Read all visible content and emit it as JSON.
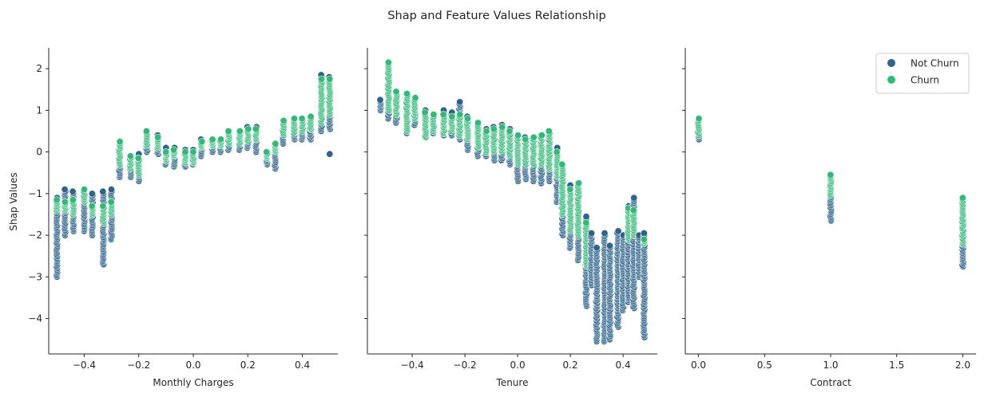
{
  "figure": {
    "title": "Shap and Feature Values Relationship",
    "ylabel": "Shap Values"
  },
  "legend": {
    "location": "top-right of third panel",
    "entries": [
      {
        "label": "Not Churn",
        "color": "#2f6389"
      },
      {
        "label": "Churn",
        "color": "#36b77a"
      }
    ]
  },
  "chart_data": [
    {
      "type": "scatter",
      "xlabel": "Monthly Charges",
      "ylabel": "Shap Values",
      "xlim": [
        -0.53,
        0.53
      ],
      "ylim": [
        -4.85,
        2.5
      ],
      "xticks": [
        -0.4,
        -0.2,
        0.0,
        0.2,
        0.4
      ],
      "xtick_labels": [
        "−0.4",
        "−0.2",
        "0.0",
        "0.2",
        "0.4"
      ],
      "yticks": [
        -4,
        -3,
        -2,
        -1,
        0,
        1,
        2
      ],
      "ytick_labels": [
        "−4",
        "−3",
        "−2",
        "−1",
        "0",
        "1",
        "2"
      ],
      "grid": false,
      "column_summary": [
        {
          "x": -0.5,
          "not_churn": [
            -3.0,
            -1.1
          ],
          "churn": [
            -1.4,
            -1.15
          ]
        },
        {
          "x": -0.47,
          "not_churn": [
            -2.0,
            -0.9
          ],
          "churn": [
            -1.4,
            -1.2
          ]
        },
        {
          "x": -0.44,
          "not_churn": [
            -1.9,
            -0.95
          ],
          "churn": [
            -1.5,
            -1.15
          ]
        },
        {
          "x": -0.4,
          "not_churn": [
            -1.9,
            -0.95
          ],
          "churn": [
            -1.2,
            -0.9
          ]
        },
        {
          "x": -0.37,
          "not_churn": [
            -2.0,
            -1.0
          ],
          "churn": [
            -1.5,
            -1.3
          ]
        },
        {
          "x": -0.33,
          "not_churn": [
            -2.7,
            -0.95
          ],
          "churn": [
            -1.7,
            -1.3
          ]
        },
        {
          "x": -0.3,
          "not_churn": [
            -2.1,
            -0.9
          ],
          "churn": [
            -1.5,
            -1.2
          ]
        },
        {
          "x": -0.27,
          "not_churn": [
            -0.6,
            0.2
          ],
          "churn": [
            -0.3,
            0.25
          ]
        },
        {
          "x": -0.23,
          "not_churn": [
            -0.6,
            -0.15
          ],
          "churn": [
            -0.4,
            -0.1
          ]
        },
        {
          "x": -0.2,
          "not_churn": [
            -0.7,
            -0.05
          ],
          "churn": [
            -0.55,
            -0.15
          ]
        },
        {
          "x": -0.17,
          "not_churn": [
            0.0,
            0.5
          ],
          "churn": [
            0.15,
            0.5
          ]
        },
        {
          "x": -0.13,
          "not_churn": [
            -0.05,
            0.4
          ],
          "churn": [
            0.1,
            0.35
          ]
        },
        {
          "x": -0.1,
          "not_churn": [
            -0.3,
            0.1
          ],
          "churn": [
            -0.2,
            0.0
          ]
        },
        {
          "x": -0.07,
          "not_churn": [
            -0.35,
            0.1
          ],
          "churn": [
            -0.1,
            0.05
          ]
        },
        {
          "x": -0.03,
          "not_churn": [
            -0.35,
            0.05
          ],
          "churn": [
            -0.25,
            0.0
          ]
        },
        {
          "x": 0.0,
          "not_churn": [
            -0.3,
            0.05
          ],
          "churn": [
            -0.25,
            0.0
          ]
        },
        {
          "x": 0.03,
          "not_churn": [
            -0.1,
            0.3
          ],
          "churn": [
            0.1,
            0.25
          ]
        },
        {
          "x": 0.07,
          "not_churn": [
            0.0,
            0.3
          ],
          "churn": [
            0.15,
            0.3
          ]
        },
        {
          "x": 0.1,
          "not_churn": [
            0.0,
            0.3
          ],
          "churn": [
            0.15,
            0.3
          ]
        },
        {
          "x": 0.13,
          "not_churn": [
            0.05,
            0.5
          ],
          "churn": [
            0.2,
            0.5
          ]
        },
        {
          "x": 0.17,
          "not_churn": [
            0.05,
            0.5
          ],
          "churn": [
            0.2,
            0.5
          ]
        },
        {
          "x": 0.2,
          "not_churn": [
            0.1,
            0.6
          ],
          "churn": [
            0.25,
            0.55
          ]
        },
        {
          "x": 0.23,
          "not_churn": [
            0.0,
            0.6
          ],
          "churn": [
            0.3,
            0.55
          ]
        },
        {
          "x": 0.27,
          "not_churn": [
            -0.3,
            0.0
          ],
          "churn": [
            -0.15,
            0.0
          ]
        },
        {
          "x": 0.3,
          "not_churn": [
            -0.4,
            0.2
          ],
          "churn": [
            0.0,
            0.2
          ]
        },
        {
          "x": 0.33,
          "not_churn": [
            0.2,
            0.75
          ],
          "churn": [
            0.4,
            0.75
          ]
        },
        {
          "x": 0.37,
          "not_churn": [
            0.3,
            0.8
          ],
          "churn": [
            0.45,
            0.8
          ]
        },
        {
          "x": 0.4,
          "not_churn": [
            0.3,
            0.8
          ],
          "churn": [
            0.5,
            0.8
          ]
        },
        {
          "x": 0.43,
          "not_churn": [
            0.3,
            0.85
          ],
          "churn": [
            0.55,
            0.85
          ]
        },
        {
          "x": 0.47,
          "not_churn": [
            0.5,
            1.85
          ],
          "churn": [
            0.7,
            1.75
          ]
        },
        {
          "x": 0.5,
          "not_churn": [
            0.55,
            1.8
          ],
          "churn": [
            0.9,
            1.75
          ]
        }
      ],
      "outliers": [
        {
          "x": 0.5,
          "y": -0.05,
          "series": "Not Churn"
        }
      ]
    },
    {
      "type": "scatter",
      "xlabel": "Tenure",
      "xlim": [
        -0.57,
        0.53
      ],
      "ylim": [
        -4.85,
        2.5
      ],
      "xticks": [
        -0.4,
        -0.2,
        0.0,
        0.2,
        0.4
      ],
      "xtick_labels": [
        "−0.4",
        "−0.2",
        "0.0",
        "0.2",
        "0.4"
      ],
      "grid": false,
      "column_summary": [
        {
          "x": -0.52,
          "not_churn": [
            1.0,
            1.25
          ],
          "churn": []
        },
        {
          "x": -0.49,
          "not_churn": [
            0.8,
            2.1
          ],
          "churn": [
            1.0,
            2.15
          ]
        },
        {
          "x": -0.46,
          "not_churn": [
            0.7,
            1.4
          ],
          "churn": [
            0.9,
            1.45
          ]
        },
        {
          "x": -0.42,
          "not_churn": [
            0.45,
            1.35
          ],
          "churn": [
            0.5,
            1.4
          ]
        },
        {
          "x": -0.39,
          "not_churn": [
            0.65,
            1.25
          ],
          "churn": [
            0.8,
            1.3
          ]
        },
        {
          "x": -0.35,
          "not_churn": [
            0.4,
            1.0
          ],
          "churn": [
            0.35,
            0.95
          ]
        },
        {
          "x": -0.32,
          "not_churn": [
            0.45,
            0.9
          ],
          "churn": [
            0.5,
            0.9
          ]
        },
        {
          "x": -0.28,
          "not_churn": [
            0.4,
            1.0
          ],
          "churn": [
            0.45,
            0.9
          ]
        },
        {
          "x": -0.25,
          "not_churn": [
            0.4,
            0.95
          ],
          "churn": [
            0.5,
            0.85
          ]
        },
        {
          "x": -0.22,
          "not_churn": [
            0.3,
            1.2
          ],
          "churn": [
            0.4,
            0.9
          ]
        },
        {
          "x": -0.19,
          "not_churn": [
            0.05,
            0.85
          ],
          "churn": [
            0.3,
            0.8
          ]
        },
        {
          "x": -0.15,
          "not_churn": [
            -0.1,
            0.7
          ],
          "churn": [
            0.1,
            0.7
          ]
        },
        {
          "x": -0.12,
          "not_churn": [
            -0.1,
            0.55
          ],
          "churn": [
            0.0,
            0.5
          ]
        },
        {
          "x": -0.09,
          "not_churn": [
            -0.2,
            0.6
          ],
          "churn": [
            0.0,
            0.55
          ]
        },
        {
          "x": -0.06,
          "not_churn": [
            -0.2,
            0.65
          ],
          "churn": [
            0.0,
            0.6
          ]
        },
        {
          "x": -0.03,
          "not_churn": [
            -0.3,
            0.55
          ],
          "churn": [
            -0.1,
            0.5
          ]
        },
        {
          "x": 0.0,
          "not_churn": [
            -0.7,
            0.35
          ],
          "churn": [
            -0.3,
            0.4
          ]
        },
        {
          "x": 0.03,
          "not_churn": [
            -0.65,
            0.35
          ],
          "churn": [
            -0.3,
            0.3
          ]
        },
        {
          "x": 0.06,
          "not_churn": [
            -0.7,
            0.35
          ],
          "churn": [
            -0.3,
            0.35
          ]
        },
        {
          "x": 0.09,
          "not_churn": [
            -0.75,
            0.4
          ],
          "churn": [
            -0.3,
            0.4
          ]
        },
        {
          "x": 0.12,
          "not_churn": [
            -0.7,
            0.5
          ],
          "churn": [
            -0.4,
            0.5
          ]
        },
        {
          "x": 0.15,
          "not_churn": [
            -1.2,
            0.1
          ],
          "churn": [
            -0.6,
            0.0
          ]
        },
        {
          "x": 0.17,
          "not_churn": [
            -2.0,
            -0.4
          ],
          "churn": [
            -1.5,
            -0.3
          ]
        },
        {
          "x": 0.2,
          "not_churn": [
            -2.3,
            -0.8
          ],
          "churn": [
            -1.9,
            -0.9
          ]
        },
        {
          "x": 0.23,
          "not_churn": [
            -2.6,
            -0.75
          ],
          "churn": [
            -2.0,
            -0.75
          ]
        },
        {
          "x": 0.26,
          "not_churn": [
            -3.7,
            -1.55
          ],
          "churn": [
            -2.75,
            -1.7
          ]
        },
        {
          "x": 0.28,
          "not_churn": [
            -3.2,
            -1.95
          ],
          "churn": []
        },
        {
          "x": 0.3,
          "not_churn": [
            -4.55,
            -2.3
          ],
          "churn": []
        },
        {
          "x": 0.33,
          "not_churn": [
            -4.55,
            -1.95
          ],
          "churn": []
        },
        {
          "x": 0.35,
          "not_churn": [
            -4.5,
            -2.25
          ],
          "churn": []
        },
        {
          "x": 0.38,
          "not_churn": [
            -4.2,
            -1.9
          ],
          "churn": []
        },
        {
          "x": 0.4,
          "not_churn": [
            -3.8,
            -2.0
          ],
          "churn": []
        },
        {
          "x": 0.42,
          "not_churn": [
            -3.6,
            -1.3
          ],
          "churn": [
            -2.1,
            -1.35
          ]
        },
        {
          "x": 0.44,
          "not_churn": [
            -3.75,
            -1.1
          ],
          "churn": [
            -2.0,
            -1.4
          ]
        },
        {
          "x": 0.46,
          "not_churn": [
            -3.0,
            -2.0
          ],
          "churn": []
        },
        {
          "x": 0.48,
          "not_churn": [
            -4.45,
            -1.95
          ],
          "churn": [
            -2.2,
            -2.1
          ]
        }
      ]
    },
    {
      "type": "scatter",
      "xlabel": "Contract",
      "xlim": [
        -0.1,
        2.1
      ],
      "ylim": [
        -4.85,
        2.5
      ],
      "xticks": [
        0.0,
        0.5,
        1.0,
        1.5,
        2.0
      ],
      "xtick_labels": [
        "0.0",
        "0.5",
        "1.0",
        "1.5",
        "2.0"
      ],
      "grid": false,
      "column_summary": [
        {
          "x": 0.0,
          "not_churn": [
            0.3,
            0.7
          ],
          "churn": [
            0.4,
            0.8
          ]
        },
        {
          "x": 1.0,
          "not_churn": [
            -1.65,
            -0.6
          ],
          "churn": [
            -1.05,
            -0.55
          ]
        },
        {
          "x": 2.0,
          "not_churn": [
            -2.75,
            -1.5
          ],
          "churn": [
            -2.2,
            -1.1
          ]
        }
      ]
    }
  ]
}
